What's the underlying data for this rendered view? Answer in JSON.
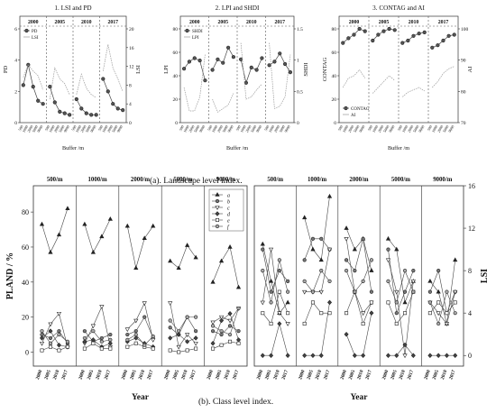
{
  "captions": {
    "a": "(a). Landscape level index.",
    "b": "(b). Class level index."
  },
  "top_panels": [
    {
      "title": "1. LSI and PD",
      "groups": [
        "2000",
        "2005",
        "2010",
        "2017"
      ],
      "xlabel": "Buffer /m",
      "tick_labels": [
        "500",
        "1000",
        "2000",
        "5000",
        "9000"
      ],
      "left_axis": {
        "label": "PD",
        "ylim": [
          0,
          6
        ],
        "ticks": [
          0,
          2,
          4,
          6
        ]
      },
      "right_axis": {
        "label": "LSI",
        "ylim": [
          0,
          20
        ],
        "ticks": [
          0,
          4,
          8,
          12,
          16,
          20
        ]
      },
      "legend": [
        {
          "name": "PD",
          "marker": "circle"
        },
        {
          "name": "LSI",
          "marker": "none"
        }
      ],
      "series": [
        {
          "name": "PD",
          "axis": "left",
          "marker": "circle",
          "values": [
            [
              2.4,
              3.7,
              2.3,
              1.4,
              1.2
            ],
            [
              2.3,
              1.3,
              0.7,
              0.6,
              0.5
            ],
            [
              1.5,
              0.9,
              0.6,
              0.5,
              0.5
            ],
            [
              2.8,
              2.0,
              1.2,
              0.9,
              0.8
            ]
          ]
        },
        {
          "name": "LSI",
          "axis": "left",
          "marker": "none",
          "values": [
            [
              2.9,
              3.7,
              3.3,
              3.0,
              2.1
            ],
            [
              1.5,
              3.5,
              2.8,
              2.5,
              1.8
            ],
            [
              1.8,
              3.1,
              2.2,
              1.8,
              1.6
            ],
            [
              3.3,
              5.0,
              3.5,
              2.8,
              2.0
            ]
          ]
        }
      ]
    },
    {
      "title": "2. LPI and SHDI",
      "groups": [
        "2000",
        "2005",
        "2010",
        "2017"
      ],
      "xlabel": "Buffer /m",
      "tick_labels": [
        "500",
        "1000",
        "2000",
        "5000",
        "9000"
      ],
      "left_axis": {
        "label": "LPI",
        "ylim": [
          0,
          80
        ],
        "ticks": [
          0,
          20,
          40,
          60,
          80
        ]
      },
      "right_axis": {
        "label": "SHDI",
        "ylim": [
          0,
          1.5
        ],
        "ticks": [
          0,
          0.5,
          1.0,
          1.5
        ]
      },
      "legend": [
        {
          "name": "SHDI",
          "marker": "circle"
        },
        {
          "name": "LPI",
          "marker": "none"
        }
      ],
      "series": [
        {
          "name": "SHDI",
          "axis": "left",
          "marker": "circle",
          "values": [
            [
              46,
              52,
              55,
              53,
              36
            ],
            [
              45,
              54,
              51,
              64,
              56
            ],
            [
              54,
              34,
              47,
              45,
              55
            ],
            [
              49,
              52,
              59,
              50,
              43
            ]
          ]
        },
        {
          "name": "LPI",
          "axis": "left",
          "marker": "none",
          "values": [
            [
              30,
              10,
              10,
              22,
              58
            ],
            [
              20,
              9,
              12,
              15,
              25
            ],
            [
              68,
              20,
              22,
              28,
              33
            ],
            [
              68,
              12,
              14,
              22,
              58
            ]
          ]
        }
      ]
    },
    {
      "title": "3. CONTAG and AI",
      "groups": [
        "2000",
        "2005",
        "2010",
        "2017"
      ],
      "xlabel": "Buffer /m",
      "tick_labels": [
        "500",
        "1000",
        "2000",
        "5000",
        "9000"
      ],
      "left_axis": {
        "label": "CONTAG",
        "ylim": [
          0,
          80
        ],
        "ticks": [
          0,
          20,
          40,
          60,
          80
        ]
      },
      "right_axis": {
        "label": "AI",
        "ylim": [
          70,
          100
        ],
        "ticks": [
          70,
          80,
          90,
          100
        ]
      },
      "legend": [
        {
          "name": "CONTAG",
          "marker": "circle"
        },
        {
          "name": "AI",
          "marker": "none"
        }
      ],
      "series": [
        {
          "name": "CONTAG",
          "axis": "left",
          "marker": "circle",
          "values": [
            [
              68,
              72,
              75,
              80,
              78
            ],
            [
              70,
              75,
              78,
              80,
              79
            ],
            [
              68,
              70,
              74,
              76,
              77
            ],
            [
              64,
              66,
              70,
              74,
              75
            ]
          ]
        },
        {
          "name": "AI",
          "axis": "left",
          "marker": "none",
          "values": [
            [
              30,
              38,
              40,
              45,
              38
            ],
            [
              25,
              30,
              35,
              40,
              36
            ],
            [
              22,
              26,
              28,
              30,
              27
            ],
            [
              30,
              35,
              42,
              46,
              48
            ]
          ]
        }
      ]
    }
  ],
  "bottom": {
    "groups": [
      "500/m",
      "1000/m",
      "2000/m",
      "5000/m",
      "9000/m"
    ],
    "years": [
      "2000",
      "2005",
      "2010",
      "2017"
    ],
    "xlabel": "Year",
    "left_ylabel": "PLAND / %",
    "right_ylabel": "LSI",
    "legend": [
      "a",
      "b",
      "c",
      "d",
      "e",
      "f"
    ],
    "pland": {
      "ylim": [
        -8,
        95
      ],
      "ticks": [
        0,
        20,
        40,
        60,
        80
      ],
      "series": [
        {
          "name": "a",
          "values": [
            [
              73,
              57,
              67,
              82
            ],
            [
              73,
              57,
              66,
              76
            ],
            [
              72,
              48,
              65,
              72
            ],
            [
              52,
              48,
              61,
              54
            ],
            [
              40,
              52,
              60,
              37
            ]
          ]
        },
        {
          "name": "b",
          "values": [
            [
              10,
              8,
              12,
              5
            ],
            [
              12,
              6,
              8,
              10
            ],
            [
              10,
              12,
              20,
              8
            ],
            [
              14,
              10,
              20,
              12
            ],
            [
              12,
              10,
              15,
              12
            ]
          ]
        },
        {
          "name": "c",
          "values": [
            [
              5,
              16,
              22,
              3
            ],
            [
              5,
              15,
              26,
              3
            ],
            [
              13,
              18,
              28,
              7
            ],
            [
              28,
              3,
              10,
              5
            ],
            [
              17,
              20,
              18,
              25
            ]
          ]
        },
        {
          "name": "d",
          "values": [
            [
              8,
              12,
              4,
              3
            ],
            [
              6,
              7,
              3,
              5
            ],
            [
              6,
              8,
              5,
              3
            ],
            [
              8,
              10,
              6,
              8
            ],
            [
              5,
              18,
              22,
              7
            ]
          ]
        },
        {
          "name": "e",
          "values": [
            [
              1,
              3,
              1,
              3
            ],
            [
              2,
              5,
              2,
              2
            ],
            [
              3,
              5,
              3,
              2
            ],
            [
              1,
              0,
              1,
              2
            ],
            [
              2,
              4,
              6,
              5
            ]
          ]
        },
        {
          "name": "f",
          "values": [
            [
              12,
              5,
              10,
              6
            ],
            [
              8,
              12,
              6,
              7
            ],
            [
              7,
              10,
              4,
              9
            ],
            [
              18,
              12,
              20,
              20
            ],
            [
              15,
              12,
              10,
              25
            ]
          ]
        }
      ]
    },
    "lsi": {
      "ylim": [
        -1,
        16
      ],
      "ticks": [
        0,
        4,
        8,
        12,
        16
      ],
      "series": [
        {
          "name": "a",
          "values": [
            [
              10.5,
              7,
              4,
              5
            ],
            [
              13,
              10,
              9,
              15
            ],
            [
              12,
              10,
              11,
              8
            ],
            [
              11,
              10,
              5,
              7
            ],
            [
              7,
              6,
              3,
              9
            ]
          ]
        },
        {
          "name": "b",
          "values": [
            [
              10,
              6,
              8,
              7
            ],
            [
              9,
              11,
              11,
              10
            ],
            [
              9,
              8,
              11,
              6
            ],
            [
              10,
              4,
              6,
              8
            ],
            [
              6,
              8,
              4,
              6
            ]
          ]
        },
        {
          "name": "c",
          "values": [
            [
              5,
              10,
              4,
              3
            ],
            [
              6,
              6,
              6,
              10
            ],
            [
              11,
              6,
              4,
              5
            ],
            [
              9,
              6,
              0,
              7
            ],
            [
              5,
              4,
              3,
              6
            ]
          ]
        },
        {
          "name": "d",
          "values": [
            [
              0,
              0,
              3,
              0
            ],
            [
              0,
              0,
              0,
              5
            ],
            [
              2,
              0,
              0,
              4
            ],
            [
              0,
              0,
              1,
              0
            ],
            [
              0,
              0,
              0,
              0
            ]
          ]
        },
        {
          "name": "e",
          "values": [
            [
              4,
              3,
              6,
              4
            ],
            [
              3,
              5,
              4,
              4
            ],
            [
              4,
              6,
              3,
              5
            ],
            [
              5,
              3,
              4,
              6
            ],
            [
              4,
              5,
              4,
              5
            ]
          ]
        },
        {
          "name": "f",
          "values": [
            [
              8,
              5,
              9,
              6
            ],
            [
              7,
              6,
              8,
              7
            ],
            [
              8,
              6,
              7,
              9
            ],
            [
              7,
              5,
              8,
              6
            ],
            [
              5,
              3,
              6,
              4
            ]
          ]
        }
      ]
    }
  }
}
